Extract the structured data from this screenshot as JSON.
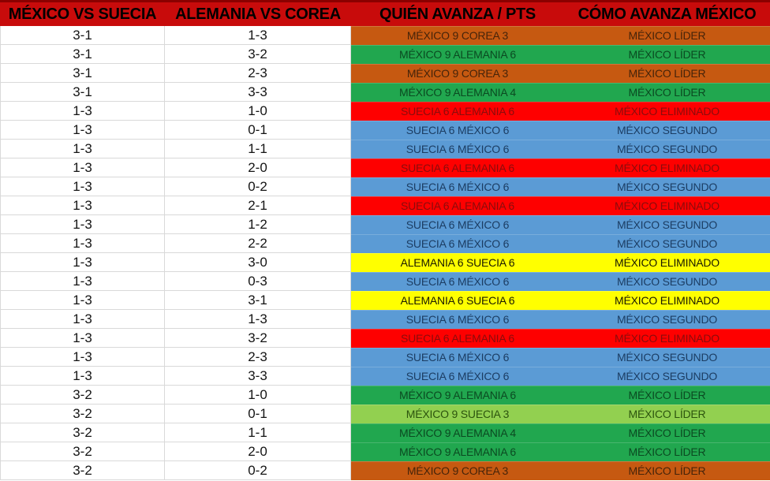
{
  "header": {
    "columns": [
      "MÉXICO VS SUECIA",
      "ALEMANIA VS COREA",
      "QUIÉN AVANZA / PTS",
      "CÓMO AVANZA MÉXICO"
    ]
  },
  "colors": {
    "header_bg": "#C80B0B",
    "header_top_border": "#8B0000",
    "header_text": "#000000",
    "grid_line": "#D9D9D9",
    "score_text": "#141414",
    "fills": {
      "orange": {
        "bg": "#C65911",
        "text": "#46240A"
      },
      "green": {
        "bg": "#21A74F",
        "text": "#0B4A21"
      },
      "lightgreen": {
        "bg": "#92D050",
        "text": "#2C540E"
      },
      "blue": {
        "bg": "#5B9BD5",
        "text": "#1C3D63"
      },
      "red": {
        "bg": "#FE0000",
        "text": "#8A0C0C"
      },
      "yellow": {
        "bg": "#FFFF00",
        "text": "#1A1A00"
      }
    }
  },
  "rows": [
    {
      "mexico_suecia": "3-1",
      "alemania_corea": "1-3",
      "quien_avanza": "MÉXICO 9 COREA 3",
      "como_avanza": "MÉXICO LÍDER",
      "fill": "orange"
    },
    {
      "mexico_suecia": "3-1",
      "alemania_corea": "3-2",
      "quien_avanza": "MÉXICO 9 ALEMANIA 6",
      "como_avanza": "MÉXICO LÍDER",
      "fill": "green"
    },
    {
      "mexico_suecia": "3-1",
      "alemania_corea": "2-3",
      "quien_avanza": "MÉXICO 9 COREA 3",
      "como_avanza": "MÉXICO LÍDER",
      "fill": "orange"
    },
    {
      "mexico_suecia": "3-1",
      "alemania_corea": "3-3",
      "quien_avanza": "MÉXICO 9 ALEMANIA 4",
      "como_avanza": "MÉXICO LÍDER",
      "fill": "green"
    },
    {
      "mexico_suecia": "1-3",
      "alemania_corea": "1-0",
      "quien_avanza": "SUECIA 6 ALEMANIA 6",
      "como_avanza": "MÉXICO ELIMINADO",
      "fill": "red"
    },
    {
      "mexico_suecia": "1-3",
      "alemania_corea": "0-1",
      "quien_avanza": "SUECIA 6 MÉXICO 6",
      "como_avanza": "MÉXICO SEGUNDO",
      "fill": "blue"
    },
    {
      "mexico_suecia": "1-3",
      "alemania_corea": "1-1",
      "quien_avanza": "SUECIA 6 MÉXICO 6",
      "como_avanza": "MÉXICO SEGUNDO",
      "fill": "blue"
    },
    {
      "mexico_suecia": "1-3",
      "alemania_corea": "2-0",
      "quien_avanza": "SUECIA 6 ALEMANIA 6",
      "como_avanza": "MÉXICO ELIMINADO",
      "fill": "red"
    },
    {
      "mexico_suecia": "1-3",
      "alemania_corea": "0-2",
      "quien_avanza": "SUECIA 6 MÉXICO 6",
      "como_avanza": "MÉXICO SEGUNDO",
      "fill": "blue"
    },
    {
      "mexico_suecia": "1-3",
      "alemania_corea": "2-1",
      "quien_avanza": "SUECIA 6 ALEMANIA 6",
      "como_avanza": "MÉXICO ELIMINADO",
      "fill": "red"
    },
    {
      "mexico_suecia": "1-3",
      "alemania_corea": "1-2",
      "quien_avanza": "SUECIA 6 MÉXICO 6",
      "como_avanza": "MÉXICO SEGUNDO",
      "fill": "blue"
    },
    {
      "mexico_suecia": "1-3",
      "alemania_corea": "2-2",
      "quien_avanza": "SUECIA 6 MÉXICO 6",
      "como_avanza": "MÉXICO SEGUNDO",
      "fill": "blue"
    },
    {
      "mexico_suecia": "1-3",
      "alemania_corea": "3-0",
      "quien_avanza": "ALEMANIA 6 SUECIA 6",
      "como_avanza": "MÉXICO ELIMINADO",
      "fill": "yellow"
    },
    {
      "mexico_suecia": "1-3",
      "alemania_corea": "0-3",
      "quien_avanza": "SUECIA 6 MÉXICO 6",
      "como_avanza": "MÉXICO SEGUNDO",
      "fill": "blue"
    },
    {
      "mexico_suecia": "1-3",
      "alemania_corea": "3-1",
      "quien_avanza": "ALEMANIA 6 SUECIA 6",
      "como_avanza": "MÉXICO ELIMINADO",
      "fill": "yellow"
    },
    {
      "mexico_suecia": "1-3",
      "alemania_corea": "1-3",
      "quien_avanza": "SUECIA 6 MÉXICO 6",
      "como_avanza": "MÉXICO SEGUNDO",
      "fill": "blue"
    },
    {
      "mexico_suecia": "1-3",
      "alemania_corea": "3-2",
      "quien_avanza": "SUECIA 6 ALEMANIA 6",
      "como_avanza": "MÉXICO ELIMINADO",
      "fill": "red"
    },
    {
      "mexico_suecia": "1-3",
      "alemania_corea": "2-3",
      "quien_avanza": "SUECIA 6 MÉXICO 6",
      "como_avanza": "MÉXICO SEGUNDO",
      "fill": "blue"
    },
    {
      "mexico_suecia": "1-3",
      "alemania_corea": "3-3",
      "quien_avanza": "SUECIA 6 MÉXICO 6",
      "como_avanza": "MÉXICO SEGUNDO",
      "fill": "blue"
    },
    {
      "mexico_suecia": "3-2",
      "alemania_corea": "1-0",
      "quien_avanza": "MÉXICO 9 ALEMANIA 6",
      "como_avanza": "MÉXICO LÍDER",
      "fill": "green"
    },
    {
      "mexico_suecia": "3-2",
      "alemania_corea": "0-1",
      "quien_avanza": "MÉXICO 9 SUECIA 3",
      "como_avanza": "MÉXICO LÍDER",
      "fill": "lightgreen"
    },
    {
      "mexico_suecia": "3-2",
      "alemania_corea": "1-1",
      "quien_avanza": "MÉXICO 9 ALEMANIA 4",
      "como_avanza": "MÉXICO LÍDER",
      "fill": "green"
    },
    {
      "mexico_suecia": "3-2",
      "alemania_corea": "2-0",
      "quien_avanza": "MÉXICO 9 ALEMANIA 6",
      "como_avanza": "MÉXICO LÍDER",
      "fill": "green"
    },
    {
      "mexico_suecia": "3-2",
      "alemania_corea": "0-2",
      "quien_avanza": "MÉXICO 9 COREA 3",
      "como_avanza": "MÉXICO LÍDER",
      "fill": "orange"
    }
  ]
}
